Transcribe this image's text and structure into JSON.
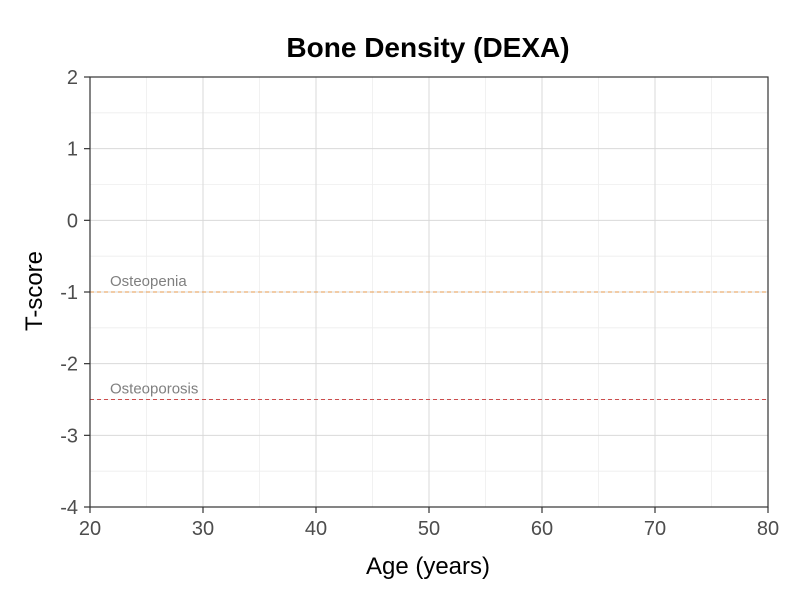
{
  "chart_data": {
    "type": "line",
    "title": "Bone Density (DEXA)",
    "xlabel": "Age (years)",
    "ylabel": "T-score",
    "xlim": [
      20,
      80
    ],
    "ylim": [
      -4,
      2
    ],
    "x_ticks": [
      20,
      30,
      40,
      50,
      60,
      70,
      80
    ],
    "y_ticks": [
      2,
      1,
      0,
      -1,
      -2,
      -3,
      -4
    ],
    "x_minor": [
      25,
      35,
      45,
      55,
      65,
      75
    ],
    "y_minor": [
      1.5,
      0.5,
      -0.5,
      -1.5,
      -2.5,
      -3.5
    ],
    "grid": true,
    "series": [],
    "reference_lines": [
      {
        "name": "Osteopenia",
        "y": -1,
        "color": "#e69a4d",
        "style": "dashed"
      },
      {
        "name": "Osteoporosis",
        "y": -2.5,
        "color": "#cc4c4c",
        "style": "dashed"
      }
    ],
    "colors": {
      "grid_major": "#d9d9d9",
      "grid_minor": "#eeeeee",
      "axis": "#333333",
      "tick_text": "#4d4d4d",
      "ref_text": "#7f7f7f"
    }
  }
}
